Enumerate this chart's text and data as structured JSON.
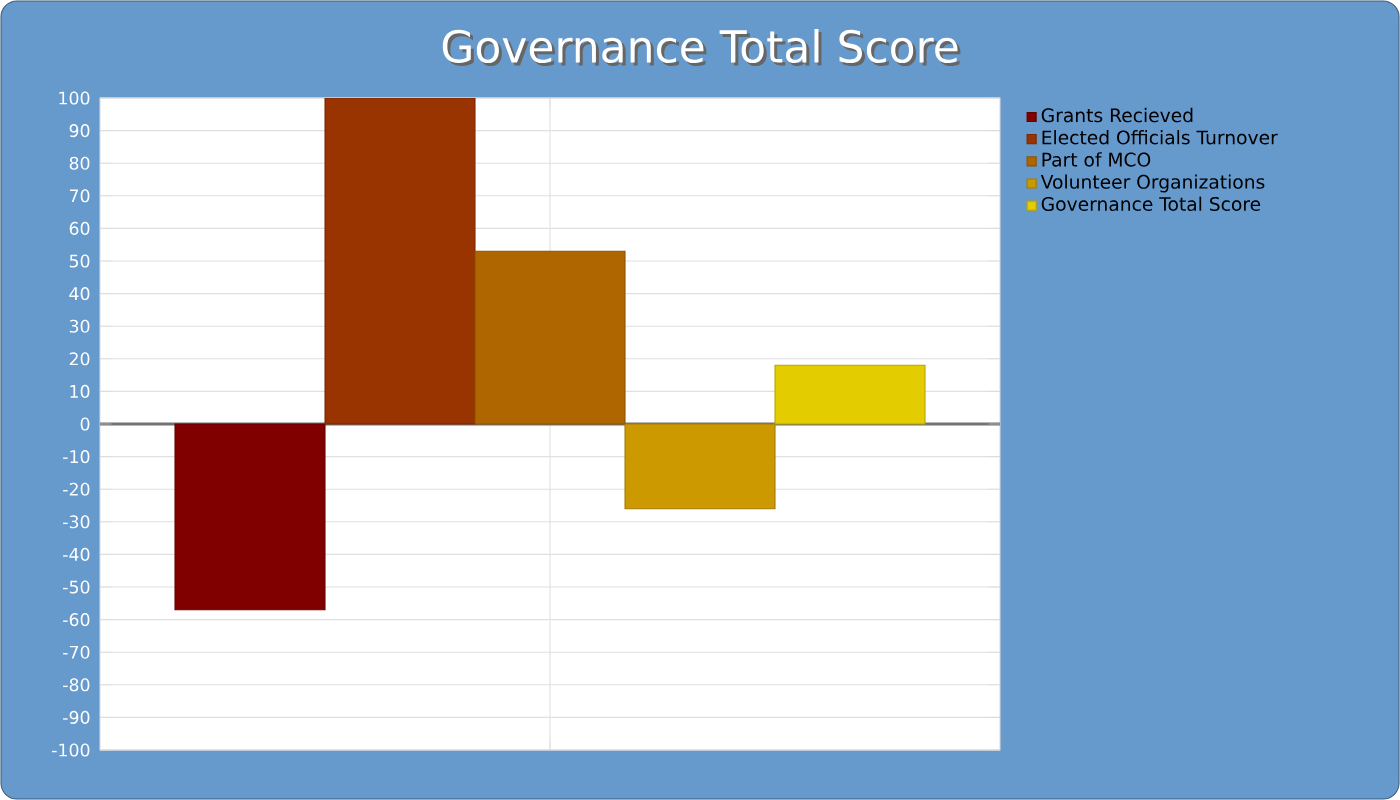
{
  "chart_data": {
    "type": "bar",
    "title": "Governance Total Score",
    "categories": [
      null
    ],
    "series": [
      {
        "name": "Grants Recieved",
        "color": "#800000",
        "values": [
          -57
        ]
      },
      {
        "name": "Elected Officials Turnover",
        "color": "#993300",
        "values": [
          100
        ]
      },
      {
        "name": "Part of MCO",
        "color": "#b06600",
        "values": [
          53
        ]
      },
      {
        "name": "Volunteer Organizations",
        "color": "#cc9900",
        "values": [
          -26
        ]
      },
      {
        "name": "Governance Total Score",
        "color": "#e3cc00",
        "values": [
          18
        ]
      }
    ],
    "ylim": [
      -100,
      100
    ],
    "yticks": [
      -100,
      -90,
      -80,
      -70,
      -60,
      -50,
      -40,
      -30,
      -20,
      -10,
      0,
      10,
      20,
      30,
      40,
      50,
      60,
      70,
      80,
      90,
      100
    ],
    "grid": true,
    "legend": "top right"
  }
}
